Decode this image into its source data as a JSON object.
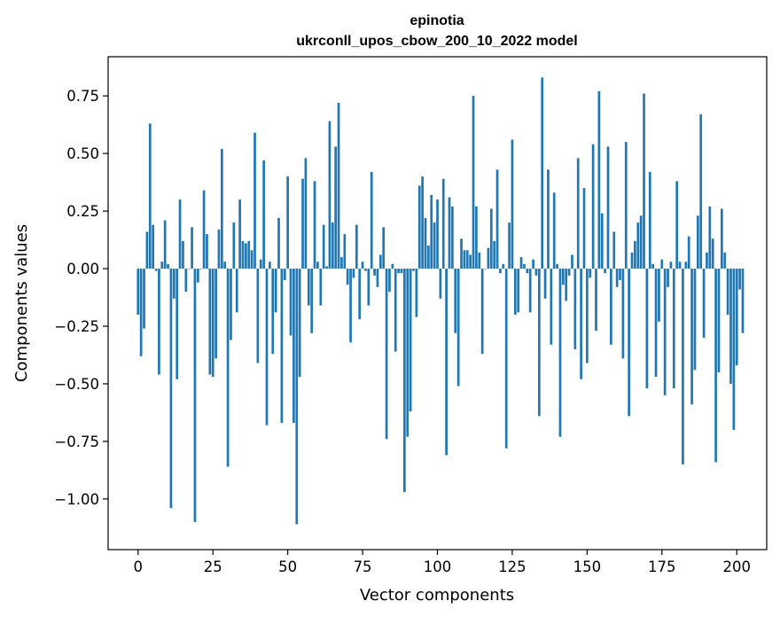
{
  "chart_data": {
    "type": "bar",
    "title_line1": "epinotia",
    "title_line2": "ukrconll_upos_cbow_200_10_2022 model",
    "xlabel": "Vector components",
    "ylabel": "Components values",
    "xlim": [
      -10,
      210
    ],
    "ylim": [
      -1.22,
      0.92
    ],
    "xticks": [
      0,
      25,
      50,
      75,
      100,
      125,
      150,
      175,
      200
    ],
    "xtick_labels": [
      "0",
      "25",
      "50",
      "75",
      "100",
      "125",
      "150",
      "175",
      "200"
    ],
    "yticks": [
      -1.0,
      -0.75,
      -0.5,
      -0.25,
      0.0,
      0.25,
      0.5,
      0.75
    ],
    "ytick_labels": [
      "−1.00",
      "−0.75",
      "−0.50",
      "−0.25",
      "0.00",
      "0.25",
      "0.50",
      "0.75"
    ],
    "bar_color": "#1f77b4",
    "grid": false,
    "values": [
      -0.2,
      -0.38,
      -0.26,
      0.16,
      0.63,
      0.19,
      -0.01,
      -0.46,
      0.03,
      0.21,
      0.02,
      -1.04,
      -0.13,
      -0.48,
      0.3,
      0.12,
      -0.1,
      0.0,
      0.18,
      -1.1,
      -0.06,
      0.0,
      0.34,
      0.15,
      -0.46,
      -0.47,
      -0.39,
      0.17,
      0.52,
      0.03,
      -0.86,
      -0.31,
      0.2,
      -0.19,
      0.3,
      0.12,
      0.11,
      0.12,
      0.08,
      0.59,
      -0.41,
      0.04,
      0.47,
      -0.68,
      0.03,
      -0.37,
      -0.19,
      0.22,
      -0.67,
      -0.05,
      0.4,
      -0.29,
      -0.67,
      -1.11,
      -0.47,
      0.39,
      0.48,
      -0.16,
      -0.28,
      0.38,
      0.03,
      -0.16,
      0.19,
      0.01,
      0.64,
      0.2,
      0.53,
      0.72,
      0.05,
      0.15,
      -0.07,
      -0.32,
      -0.04,
      0.19,
      -0.22,
      0.03,
      -0.01,
      -0.16,
      0.42,
      -0.03,
      -0.08,
      0.06,
      0.18,
      -0.74,
      -0.1,
      0.02,
      -0.36,
      -0.02,
      -0.02,
      -0.97,
      -0.73,
      -0.62,
      -0.01,
      -0.21,
      0.36,
      0.4,
      0.22,
      0.1,
      0.32,
      0.2,
      0.3,
      -0.13,
      0.39,
      -0.81,
      0.31,
      0.27,
      -0.28,
      -0.51,
      0.13,
      0.08,
      0.08,
      0.06,
      0.75,
      0.27,
      0.07,
      -0.37,
      0.0,
      0.09,
      0.26,
      0.12,
      0.43,
      -0.02,
      0.02,
      -0.78,
      0.2,
      0.56,
      -0.2,
      -0.19,
      0.05,
      0.02,
      -0.02,
      -0.19,
      0.04,
      -0.03,
      -0.64,
      0.83,
      -0.13,
      0.43,
      -0.33,
      0.33,
      0.02,
      -0.73,
      -0.07,
      -0.14,
      -0.03,
      0.06,
      -0.35,
      0.48,
      -0.48,
      0.35,
      -0.41,
      -0.04,
      0.54,
      -0.27,
      0.77,
      0.24,
      -0.02,
      0.53,
      -0.33,
      0.16,
      -0.08,
      -0.05,
      -0.39,
      0.55,
      -0.64,
      0.07,
      0.12,
      0.2,
      0.23,
      0.76,
      -0.52,
      0.42,
      0.02,
      -0.47,
      -0.23,
      0.04,
      -0.55,
      -0.08,
      0.03,
      -0.52,
      0.38,
      0.03,
      -0.85,
      0.03,
      0.14,
      -0.59,
      -0.44,
      0.23,
      0.67,
      -0.3,
      0.07,
      0.27,
      0.13,
      -0.84,
      -0.45,
      0.26,
      0.07,
      -0.2,
      -0.5,
      -0.7,
      -0.42,
      -0.09,
      -0.28
    ]
  }
}
